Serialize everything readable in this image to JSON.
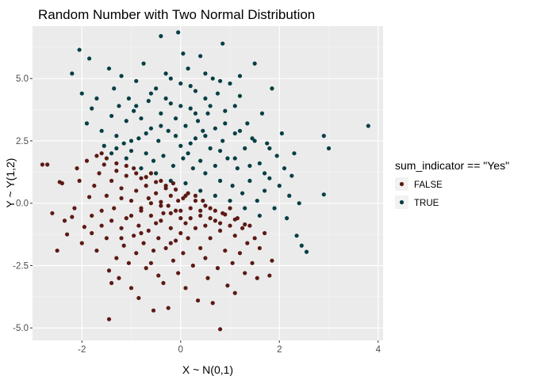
{
  "chart_data": {
    "type": "scatter",
    "title": "Random Number with Two Normal Distribution",
    "xlabel": "X ~ N(0,1)",
    "ylabel": "Y ~ Y(1,2)",
    "xlim": [
      -3.0,
      4.1
    ],
    "ylim": [
      -5.5,
      7.1
    ],
    "x_ticks": [
      -2,
      0,
      2,
      4
    ],
    "y_ticks": [
      -5.0,
      -2.5,
      0.0,
      2.5,
      5.0
    ],
    "x_tick_labels": [
      "-2",
      "0",
      "2",
      "4"
    ],
    "y_tick_labels": [
      "-5.0",
      "-2.5",
      "0.0",
      "2.5",
      "5.0"
    ],
    "grid": true,
    "legend": {
      "title": "sum_indicator == \"Yes\"",
      "placement": "right"
    },
    "series": [
      {
        "name": "FALSE",
        "color": "#5c1a14",
        "points": [
          [
            -2.8,
            1.55
          ],
          [
            -2.7,
            1.55
          ],
          [
            -2.6,
            -0.4
          ],
          [
            -2.5,
            -1.9
          ],
          [
            -2.45,
            0.85
          ],
          [
            -2.4,
            0.8
          ],
          [
            -2.35,
            -0.7
          ],
          [
            -2.3,
            -1.25
          ],
          [
            -2.2,
            -0.55
          ],
          [
            -2.15,
            -0.2
          ],
          [
            -2.1,
            1.4
          ],
          [
            -2.05,
            0.9
          ],
          [
            -2.0,
            -1.6
          ],
          [
            -1.95,
            -0.95
          ],
          [
            -1.9,
            1.7
          ],
          [
            -1.85,
            0.25
          ],
          [
            -1.8,
            -0.5
          ],
          [
            -1.75,
            0.7
          ],
          [
            -1.7,
            -1.9
          ],
          [
            -1.65,
            1.2
          ],
          [
            -1.6,
            2.0
          ],
          [
            -1.6,
            -0.9
          ],
          [
            -1.55,
            1.55
          ],
          [
            -1.5,
            0.3
          ],
          [
            -1.5,
            -1.4
          ],
          [
            -1.45,
            -2.7
          ],
          [
            -1.45,
            -4.65
          ],
          [
            -1.4,
            0.9
          ],
          [
            -1.4,
            -3.2
          ],
          [
            -1.35,
            -0.2
          ],
          [
            -1.3,
            1.3
          ],
          [
            -1.3,
            -2.2
          ],
          [
            -1.25,
            -3.0
          ],
          [
            -1.2,
            0.6
          ],
          [
            -1.2,
            -1.0
          ],
          [
            -1.15,
            -1.7
          ],
          [
            -1.1,
            1.1
          ],
          [
            -1.1,
            -0.6
          ],
          [
            -1.05,
            -2.4
          ],
          [
            -1.0,
            0.1
          ],
          [
            -1.0,
            -3.4
          ],
          [
            -0.95,
            1.4
          ],
          [
            -0.95,
            -1.3
          ],
          [
            -0.9,
            0.5
          ],
          [
            -0.9,
            -2.0
          ],
          [
            -0.85,
            -0.9
          ],
          [
            -0.85,
            -3.8
          ],
          [
            -0.8,
            1.0
          ],
          [
            -0.8,
            -0.3
          ],
          [
            -0.75,
            -1.6
          ],
          [
            -0.7,
            0.7
          ],
          [
            -0.7,
            -2.6
          ],
          [
            -0.65,
            0.2
          ],
          [
            -0.65,
            -1.1
          ],
          [
            -0.6,
            1.2
          ],
          [
            -0.6,
            -0.5
          ],
          [
            -0.55,
            -1.9
          ],
          [
            -0.55,
            -4.3
          ],
          [
            -0.5,
            0.4
          ],
          [
            -0.5,
            -0.8
          ],
          [
            -0.45,
            -2.9
          ],
          [
            -0.45,
            -1.4
          ],
          [
            -0.4,
            0.9
          ],
          [
            -0.4,
            0.05
          ],
          [
            -0.35,
            -0.4
          ],
          [
            -0.35,
            -3.2
          ],
          [
            -0.3,
            0.6
          ],
          [
            -0.3,
            -1.8
          ],
          [
            -0.25,
            -0.1
          ],
          [
            -0.25,
            -4.2
          ],
          [
            -0.2,
            0.3
          ],
          [
            -0.2,
            -1.0
          ],
          [
            -0.15,
            -2.3
          ],
          [
            -0.15,
            0.8
          ],
          [
            -0.1,
            -0.3
          ],
          [
            -0.1,
            -1.5
          ],
          [
            -0.05,
            0.1
          ],
          [
            -0.05,
            -2.8
          ],
          [
            0.0,
            -0.6
          ],
          [
            0.0,
            -1.2
          ],
          [
            0.05,
            0.2
          ],
          [
            0.05,
            -2.0
          ],
          [
            0.1,
            -0.8
          ],
          [
            0.1,
            -3.4
          ],
          [
            0.15,
            0.4
          ],
          [
            0.15,
            -1.4
          ],
          [
            0.2,
            -0.2
          ],
          [
            0.25,
            -2.5
          ],
          [
            0.3,
            0.3
          ],
          [
            0.3,
            -1.0
          ],
          [
            0.35,
            -3.9
          ],
          [
            0.4,
            -0.5
          ],
          [
            0.4,
            -1.8
          ],
          [
            0.45,
            0.1
          ],
          [
            0.5,
            -2.2
          ],
          [
            0.5,
            -0.9
          ],
          [
            0.55,
            -3.0
          ],
          [
            0.6,
            -0.2
          ],
          [
            0.6,
            -1.4
          ],
          [
            0.65,
            -4.0
          ],
          [
            0.7,
            -0.7
          ],
          [
            0.75,
            -2.6
          ],
          [
            0.8,
            -1.1
          ],
          [
            0.8,
            -5.05
          ],
          [
            0.85,
            -0.4
          ],
          [
            0.9,
            -1.9
          ],
          [
            0.95,
            -3.3
          ],
          [
            1.0,
            -0.9
          ],
          [
            1.05,
            -2.4
          ],
          [
            1.1,
            -1.3
          ],
          [
            1.1,
            -3.6
          ],
          [
            1.15,
            -0.6
          ],
          [
            1.2,
            -2.0
          ],
          [
            1.25,
            -1.0
          ],
          [
            1.3,
            -2.8
          ],
          [
            1.35,
            -1.6
          ],
          [
            1.4,
            -0.9
          ],
          [
            1.45,
            -2.4
          ],
          [
            1.5,
            -1.4
          ],
          [
            1.55,
            -3.0
          ],
          [
            1.6,
            -1.8
          ],
          [
            1.7,
            -1.2
          ],
          [
            1.8,
            -2.9
          ],
          [
            1.85,
            -2.3
          ],
          [
            -1.7,
            1.9
          ],
          [
            -1.5,
            1.8
          ],
          [
            -1.3,
            1.6
          ],
          [
            -1.1,
            1.5
          ],
          [
            -0.9,
            1.2
          ],
          [
            -0.7,
            1.05
          ],
          [
            -0.5,
            0.85
          ],
          [
            -0.3,
            0.7
          ],
          [
            -0.1,
            0.55
          ],
          [
            0.1,
            0.3
          ],
          [
            0.3,
            0.1
          ],
          [
            0.5,
            -0.1
          ],
          [
            0.7,
            -0.3
          ],
          [
            0.9,
            -0.45
          ],
          [
            1.1,
            -0.65
          ],
          [
            1.3,
            -0.85
          ],
          [
            -1.2,
            0.2
          ],
          [
            -0.8,
            -0.2
          ],
          [
            -0.6,
            0.0
          ],
          [
            -0.4,
            -0.1
          ],
          [
            -0.2,
            -0.4
          ],
          [
            0.2,
            -0.6
          ],
          [
            0.4,
            -0.3
          ],
          [
            0.6,
            -0.6
          ],
          [
            0.8,
            -0.8
          ],
          [
            1.0,
            -0.2
          ],
          [
            -1.8,
            -1.2
          ],
          [
            -1.6,
            -0.3
          ],
          [
            -1.4,
            -0.7
          ],
          [
            -1.2,
            -1.4
          ],
          [
            -1.0,
            -0.5
          ],
          [
            -0.8,
            -1.2
          ],
          [
            -0.6,
            -2.4
          ],
          [
            -0.4,
            -0.7
          ],
          [
            -0.2,
            -1.6
          ],
          [
            0.0,
            -0.3
          ]
        ]
      },
      {
        "name": "TRUE",
        "color": "#073f44",
        "points": [
          [
            -2.2,
            5.2
          ],
          [
            -2.05,
            6.15
          ],
          [
            -2.0,
            4.4
          ],
          [
            -1.9,
            3.2
          ],
          [
            -1.85,
            5.8
          ],
          [
            -1.8,
            3.8
          ],
          [
            -1.7,
            4.2
          ],
          [
            -1.6,
            2.9
          ],
          [
            -1.55,
            2.3
          ],
          [
            -1.45,
            5.4
          ],
          [
            -1.4,
            3.5
          ],
          [
            -1.35,
            4.6
          ],
          [
            -1.3,
            2.7
          ],
          [
            -1.25,
            3.9
          ],
          [
            -1.2,
            5.1
          ],
          [
            -1.15,
            2.4
          ],
          [
            -1.1,
            3.3
          ],
          [
            -1.05,
            4.2
          ],
          [
            -1.0,
            2.1
          ],
          [
            -0.95,
            3.7
          ],
          [
            -0.9,
            4.9
          ],
          [
            -0.85,
            2.6
          ],
          [
            -0.8,
            3.4
          ],
          [
            -0.75,
            5.6
          ],
          [
            -0.7,
            2.0
          ],
          [
            -0.65,
            4.1
          ],
          [
            -0.6,
            3.0
          ],
          [
            -0.55,
            1.7
          ],
          [
            -0.5,
            4.6
          ],
          [
            -0.45,
            2.5
          ],
          [
            -0.4,
            6.7
          ],
          [
            -0.4,
            3.6
          ],
          [
            -0.35,
            1.9
          ],
          [
            -0.3,
            5.2
          ],
          [
            -0.25,
            2.9
          ],
          [
            -0.2,
            4.0
          ],
          [
            -0.15,
            1.5
          ],
          [
            -0.1,
            3.4
          ],
          [
            -0.05,
            6.85
          ],
          [
            0.0,
            2.3
          ],
          [
            0.0,
            4.8
          ],
          [
            0.05,
            1.8
          ],
          [
            0.05,
            6.0
          ],
          [
            0.1,
            3.1
          ],
          [
            0.15,
            2.0
          ],
          [
            0.15,
            5.4
          ],
          [
            0.2,
            3.8
          ],
          [
            0.25,
            1.4
          ],
          [
            0.3,
            4.5
          ],
          [
            0.3,
            2.6
          ],
          [
            0.35,
            3.3
          ],
          [
            0.4,
            1.7
          ],
          [
            0.4,
            5.9
          ],
          [
            0.45,
            2.9
          ],
          [
            0.5,
            4.2
          ],
          [
            0.5,
            1.2
          ],
          [
            0.55,
            3.6
          ],
          [
            0.6,
            2.2
          ],
          [
            0.65,
            5.0
          ],
          [
            0.7,
            1.5
          ],
          [
            0.7,
            3.0
          ],
          [
            0.75,
            4.4
          ],
          [
            0.8,
            0.9
          ],
          [
            0.85,
            2.5
          ],
          [
            0.85,
            6.4
          ],
          [
            0.9,
            3.7
          ],
          [
            0.95,
            1.8
          ],
          [
            1.0,
            4.8
          ],
          [
            1.05,
            0.7
          ],
          [
            1.1,
            2.8
          ],
          [
            1.1,
            3.9
          ],
          [
            1.15,
            1.4
          ],
          [
            1.2,
            4.3
          ],
          [
            1.25,
            0.4
          ],
          [
            1.3,
            2.2
          ],
          [
            1.35,
            3.2
          ],
          [
            1.4,
            0.9
          ],
          [
            1.45,
            2.6
          ],
          [
            1.5,
            5.6
          ],
          [
            1.55,
            0.1
          ],
          [
            1.6,
            1.6
          ],
          [
            1.65,
            3.6
          ],
          [
            1.7,
            0.5
          ],
          [
            1.75,
            2.4
          ],
          [
            1.8,
            1.0
          ],
          [
            1.85,
            4.6
          ],
          [
            1.9,
            -0.2
          ],
          [
            1.95,
            1.9
          ],
          [
            2.0,
            0.7
          ],
          [
            2.05,
            2.8
          ],
          [
            2.1,
            1.4
          ],
          [
            2.15,
            -0.6
          ],
          [
            2.2,
            0.3
          ],
          [
            2.25,
            1.1
          ],
          [
            2.3,
            2.0
          ],
          [
            2.35,
            -1.3
          ],
          [
            2.4,
            0.0
          ],
          [
            2.45,
            -1.7
          ],
          [
            2.55,
            -1.95
          ],
          [
            2.9,
            2.7
          ],
          [
            2.9,
            0.35
          ],
          [
            3.0,
            2.2
          ],
          [
            3.8,
            3.1
          ],
          [
            -1.4,
            2.0
          ],
          [
            -1.1,
            1.8
          ],
          [
            -0.8,
            1.4
          ],
          [
            -0.5,
            1.2
          ],
          [
            -0.2,
            0.9
          ],
          [
            0.1,
            0.8
          ],
          [
            0.4,
            0.5
          ],
          [
            0.7,
            0.3
          ],
          [
            1.0,
            0.1
          ],
          [
            1.3,
            -0.2
          ],
          [
            1.6,
            -0.5
          ],
          [
            -1.3,
            2.2
          ],
          [
            -1.0,
            2.5
          ],
          [
            -0.7,
            2.8
          ],
          [
            -0.4,
            3.1
          ],
          [
            -0.1,
            2.7
          ],
          [
            0.2,
            2.4
          ],
          [
            0.5,
            2.7
          ],
          [
            0.8,
            2.1
          ],
          [
            1.1,
            1.8
          ],
          [
            1.4,
            1.5
          ],
          [
            1.7,
            1.2
          ],
          [
            -0.6,
            4.4
          ],
          [
            -0.3,
            4.2
          ],
          [
            0.0,
            3.9
          ],
          [
            0.3,
            3.6
          ],
          [
            0.6,
            3.9
          ],
          [
            0.9,
            3.2
          ],
          [
            1.2,
            2.9
          ],
          [
            1.5,
            2.5
          ],
          [
            1.8,
            2.2
          ],
          [
            -0.9,
            3.9
          ],
          [
            -0.2,
            5.0
          ],
          [
            0.2,
            4.7
          ],
          [
            0.5,
            5.2
          ],
          [
            0.8,
            4.9
          ],
          [
            1.2,
            5.1
          ]
        ]
      }
    ]
  }
}
